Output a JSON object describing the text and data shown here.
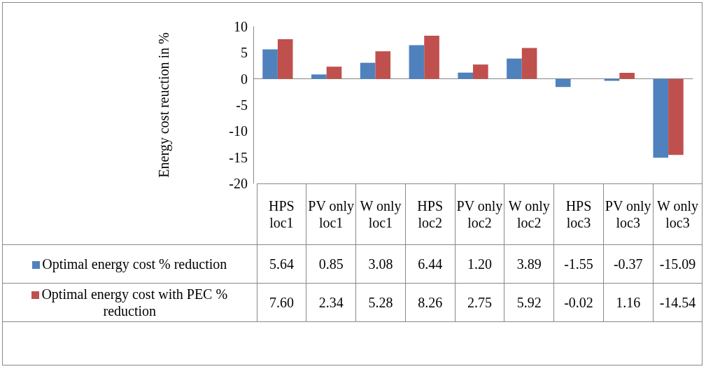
{
  "chart_data": {
    "type": "bar",
    "categories": [
      "HPS loc1",
      "PV only loc1",
      "W only loc1",
      "HPS loc2",
      "PV only loc2",
      "W only loc2",
      "HPS loc3",
      "PV only loc3",
      "W only loc3"
    ],
    "series": [
      {
        "name": "Optimal energy cost % reduction",
        "color": "#4f81bd",
        "values": [
          5.64,
          0.85,
          3.08,
          6.44,
          1.2,
          3.89,
          -1.55,
          -0.37,
          -15.09
        ],
        "value_labels": [
          "5.64",
          "0.85",
          "3.08",
          "6.44",
          "1.20",
          "3.89",
          "-1.55",
          "-0.37",
          "-15.09"
        ]
      },
      {
        "name": "Optimal energy cost  with PEC % reduction",
        "color": "#c0504d",
        "values": [
          7.6,
          2.34,
          5.28,
          8.26,
          2.75,
          5.92,
          -0.02,
          1.16,
          -14.54
        ],
        "value_labels": [
          "7.60",
          "2.34",
          "5.28",
          "8.26",
          "2.75",
          "5.92",
          "-0.02",
          "1.16",
          "-14.54"
        ]
      }
    ],
    "ylabel": "Energy cost reuction in %",
    "ylim": [
      -20,
      10
    ],
    "yticks": [
      -20,
      -15,
      -10,
      -5,
      0,
      5,
      10
    ],
    "legend": "bottom"
  }
}
